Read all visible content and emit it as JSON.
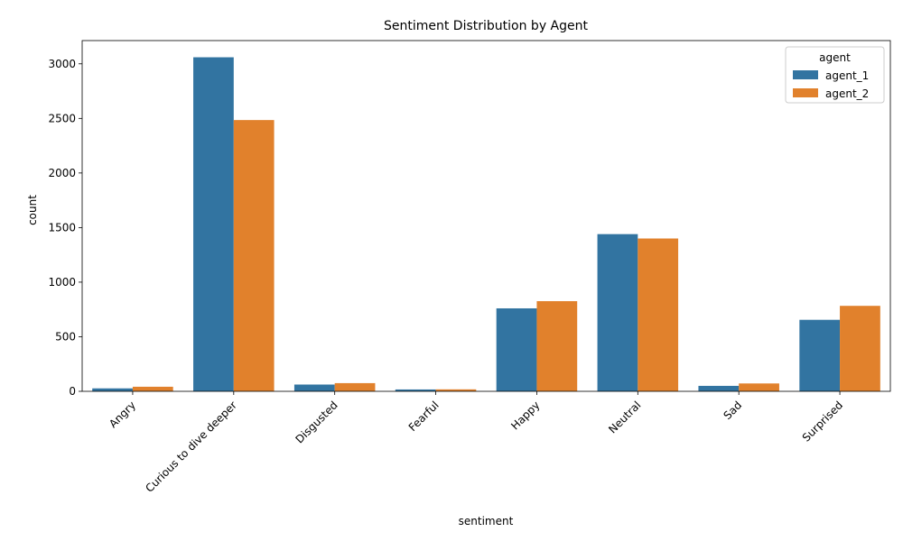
{
  "chart_data": {
    "type": "bar",
    "title": "Sentiment Distribution by Agent",
    "xlabel": "sentiment",
    "ylabel": "count",
    "categories": [
      "Angry",
      "Curious to dive deeper",
      "Disgusted",
      "Fearful",
      "Happy",
      "Neutral",
      "Sad",
      "Surprised"
    ],
    "series": [
      {
        "name": "agent_1",
        "color": "#3274a1",
        "values": [
          27,
          3060,
          62,
          17,
          760,
          1440,
          50,
          655
        ]
      },
      {
        "name": "agent_2",
        "color": "#e1812c",
        "values": [
          42,
          2485,
          75,
          18,
          826,
          1400,
          72,
          783
        ]
      }
    ],
    "ylim": [
      0,
      3213
    ],
    "yticks": [
      0,
      500,
      1000,
      1500,
      2000,
      2500,
      3000
    ],
    "grid": false,
    "legend": {
      "title": "agent",
      "placement": "top-right"
    },
    "xtick_rotation_deg": 45
  }
}
